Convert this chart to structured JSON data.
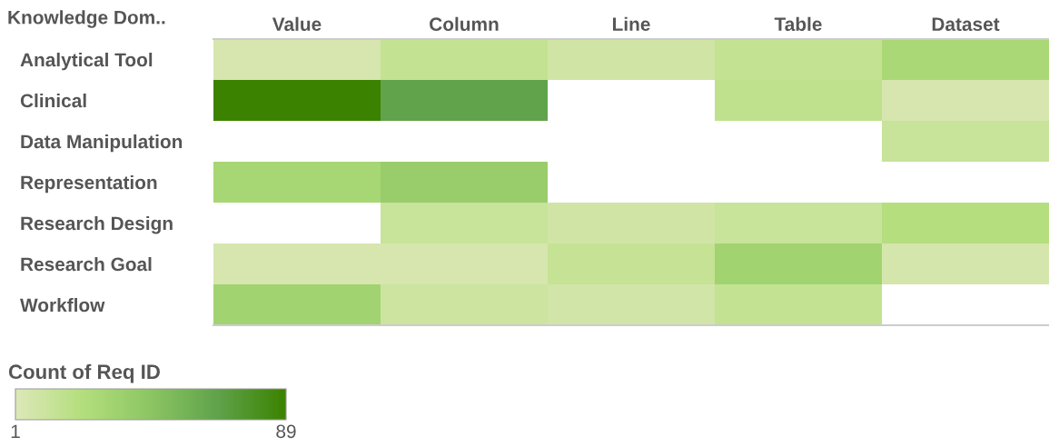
{
  "chart_data": {
    "type": "heatmap",
    "ylabel": "Knowledge Dom..",
    "clabel": "Count of Req ID",
    "categories": [
      "Value",
      "Column",
      "Line",
      "Table",
      "Dataset"
    ],
    "y_categories": [
      "Analytical Tool",
      "Clinical",
      "Data Manipulation",
      "Representation",
      "Research Design",
      "Research Goal",
      "Workflow"
    ],
    "cells": [
      [
        5,
        15,
        8,
        15,
        28
      ],
      [
        89,
        66,
        null,
        17,
        5
      ],
      [
        null,
        null,
        null,
        null,
        12
      ],
      [
        30,
        38,
        null,
        null,
        null
      ],
      [
        null,
        12,
        8,
        12,
        22
      ],
      [
        5,
        5,
        14,
        33,
        6
      ],
      [
        33,
        10,
        7,
        15,
        null
      ]
    ],
    "clim": [
      1,
      89
    ],
    "cticks": [
      1,
      89
    ],
    "grid": false
  }
}
